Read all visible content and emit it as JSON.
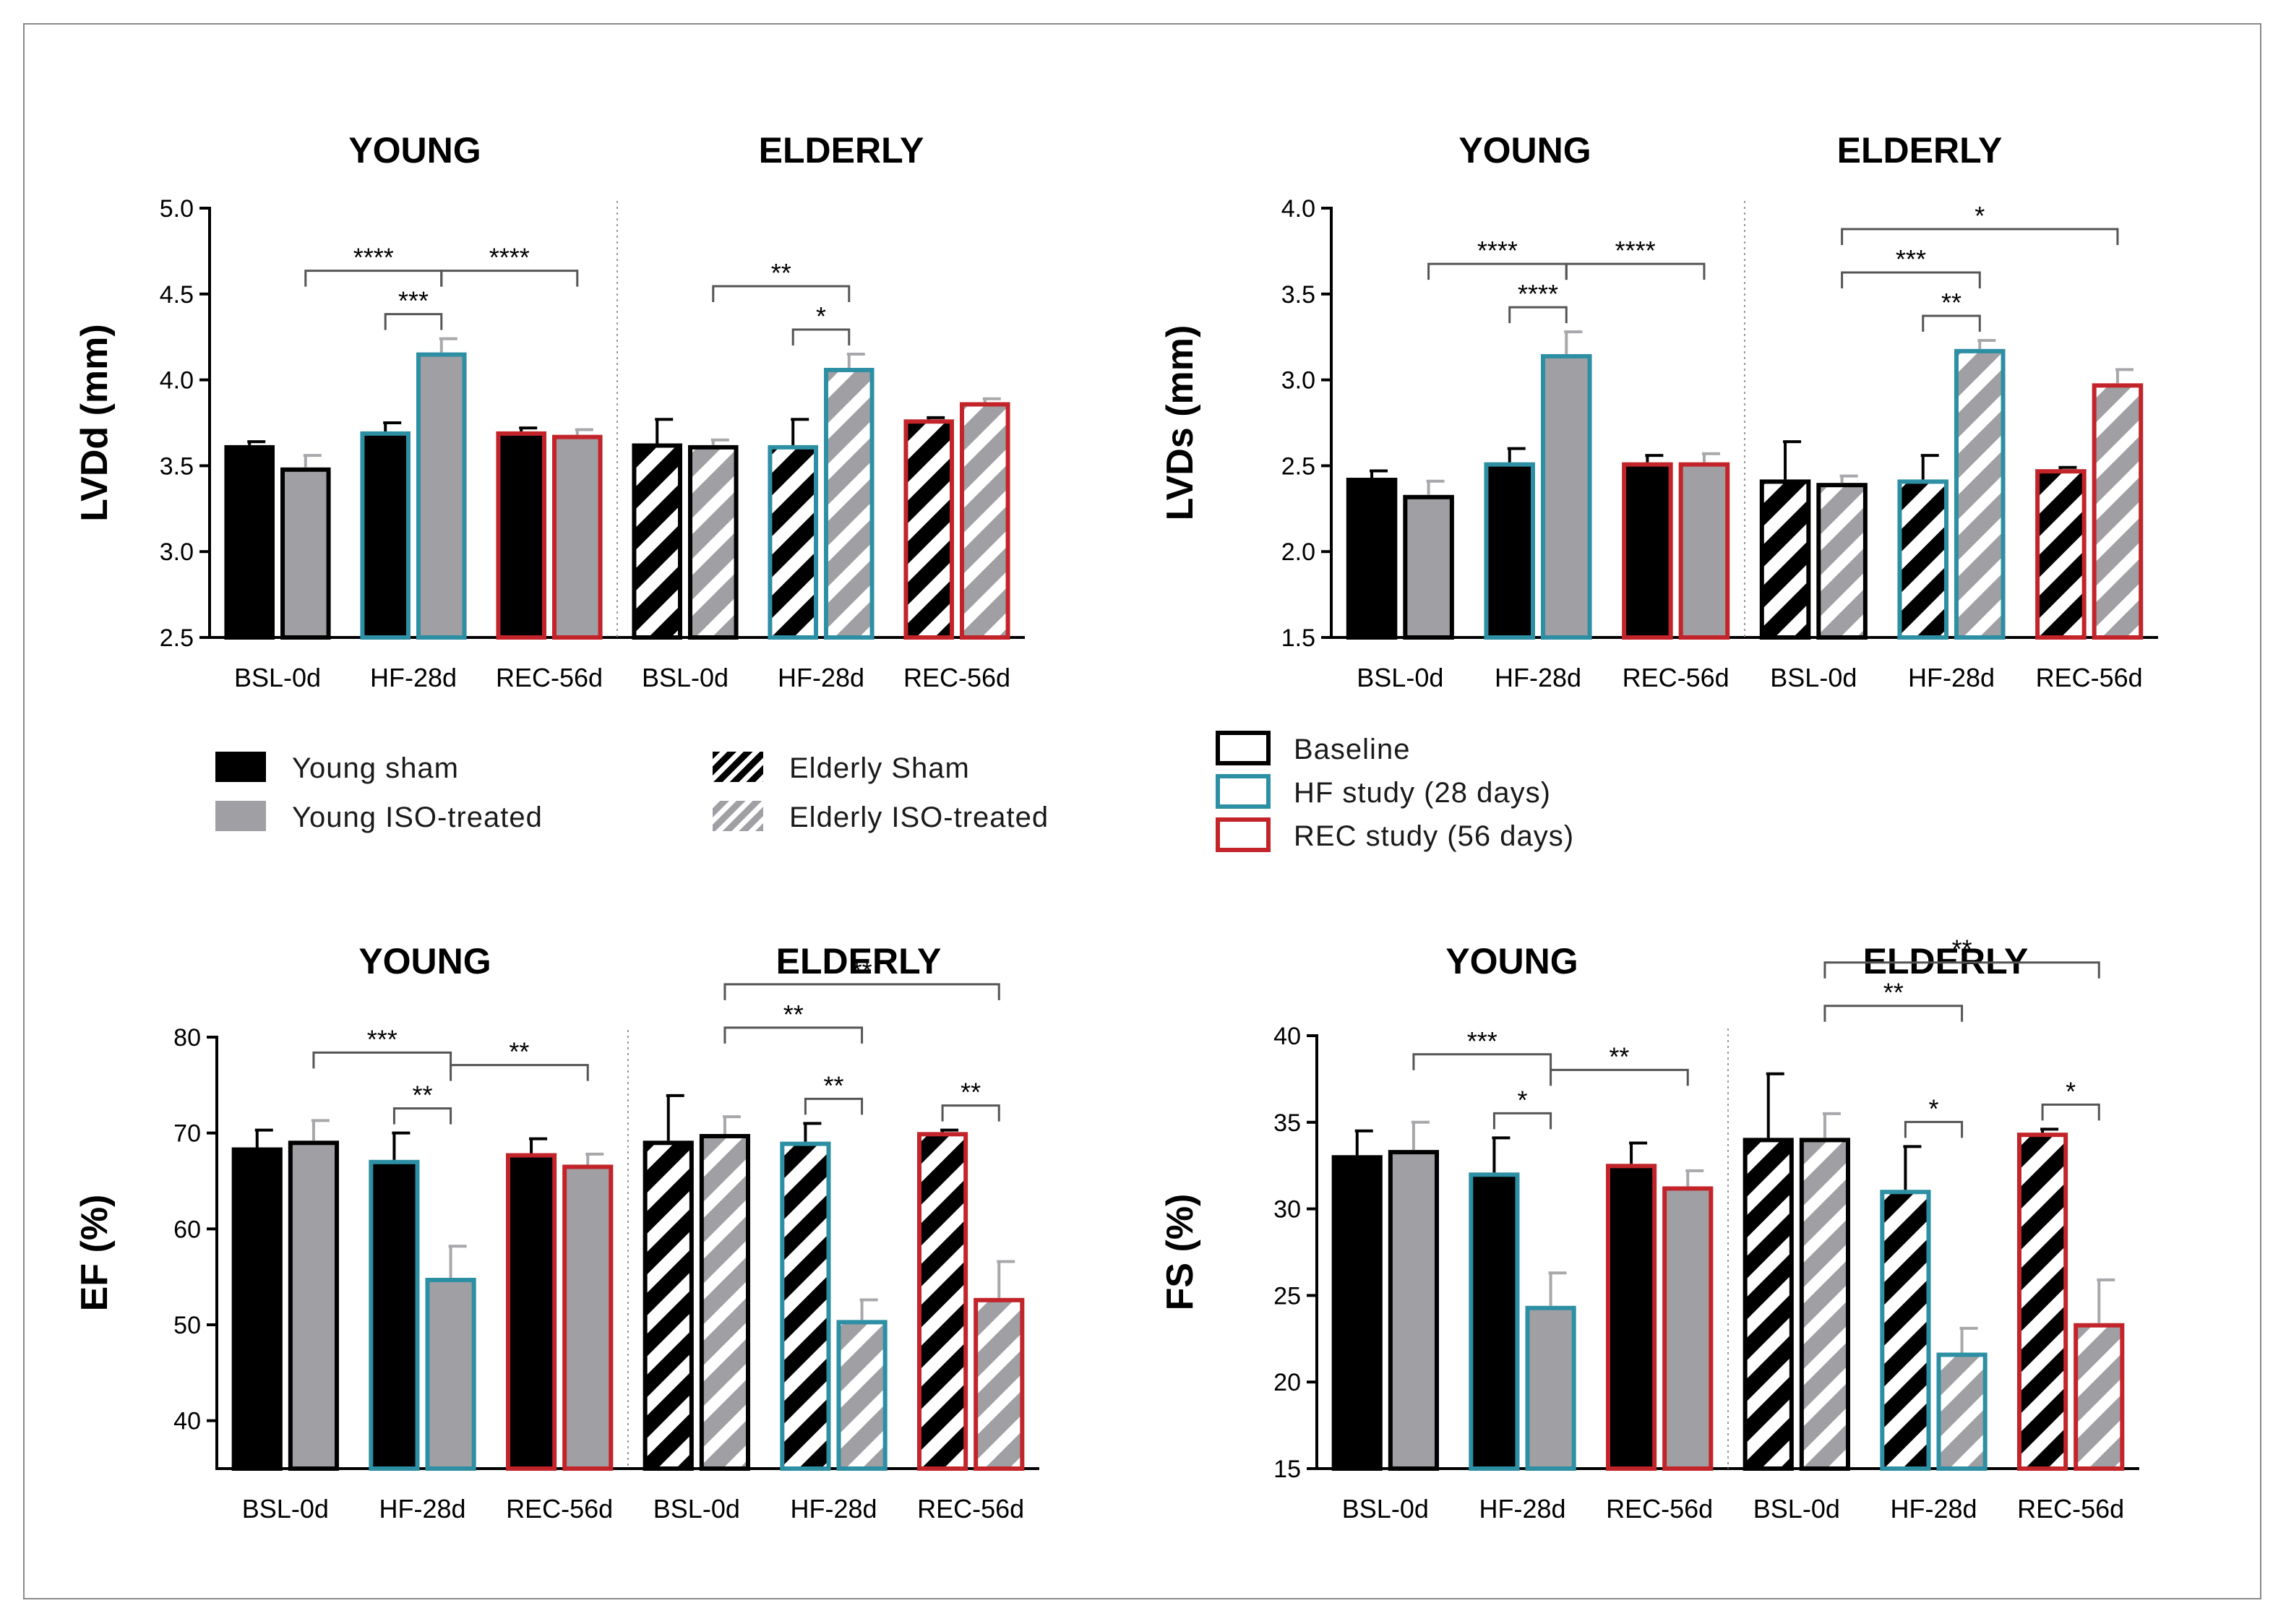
{
  "legend_groups": {
    "items": [
      {
        "label": "Young sham",
        "fill": "black",
        "hatch": false
      },
      {
        "label": "Young ISO-treated",
        "fill": "#a0a0a4",
        "hatch": false
      },
      {
        "label": "Elderly Sham",
        "fill": "black",
        "hatch": true
      },
      {
        "label": "Elderly ISO-treated",
        "fill": "#a0a0a4",
        "hatch": true
      }
    ]
  },
  "legend_studies": {
    "items": [
      {
        "label": "Baseline",
        "color": "#000000"
      },
      {
        "label": "HF study (28 days)",
        "color": "#2d8fa3"
      },
      {
        "label": "REC study (56 days)",
        "color": "#c2242a"
      }
    ]
  },
  "colors": {
    "sham": "#000000",
    "iso": "#a0a0a4",
    "baseline": "#000000",
    "hf": "#2d8fa3",
    "rec": "#c2242a"
  },
  "chart_data": [
    {
      "type": "bar",
      "panel": "top-left",
      "ylabel": "LVDd (mm)",
      "ylim": [
        2.5,
        5.0
      ],
      "yticks": [
        "2.5",
        "3.0",
        "3.5",
        "4.0",
        "4.5",
        "5.0"
      ],
      "group_labels": [
        "YOUNG",
        "ELDERLY"
      ],
      "categories": [
        "BSL-0d",
        "HF-28d",
        "REC-56d",
        "BSL-0d",
        "HF-28d",
        "REC-56d"
      ],
      "series": [
        {
          "name": "Sham",
          "values": [
            3.62,
            3.7,
            3.7,
            3.63,
            3.62,
            3.77
          ],
          "errors": [
            0.02,
            0.05,
            0.02,
            0.14,
            0.15,
            0.01
          ]
        },
        {
          "name": "ISO-treated",
          "values": [
            3.49,
            4.16,
            3.68,
            3.62,
            4.07,
            3.87
          ],
          "errors": [
            0.07,
            0.08,
            0.03,
            0.03,
            0.08,
            0.02
          ]
        }
      ],
      "significance": [
        {
          "label": "****",
          "from": [
            0,
            1
          ],
          "to": [
            1,
            1
          ]
        },
        {
          "label": "****",
          "from": [
            1,
            1
          ],
          "to": [
            2,
            1
          ]
        },
        {
          "label": "***",
          "from": [
            1,
            0
          ],
          "to": [
            1,
            1
          ]
        },
        {
          "label": "**",
          "from": [
            3,
            1
          ],
          "to": [
            4,
            1
          ]
        },
        {
          "label": "*",
          "from": [
            4,
            0
          ],
          "to": [
            4,
            1
          ]
        }
      ]
    },
    {
      "type": "bar",
      "panel": "top-right",
      "ylabel": "LVDs (mm)",
      "ylim": [
        1.5,
        4.0
      ],
      "yticks": [
        "1.5",
        "2.0",
        "2.5",
        "3.0",
        "3.5",
        "4.0"
      ],
      "group_labels": [
        "YOUNG",
        "ELDERLY"
      ],
      "categories": [
        "BSL-0d",
        "HF-28d",
        "REC-56d",
        "BSL-0d",
        "HF-28d",
        "REC-56d"
      ],
      "series": [
        {
          "name": "Sham",
          "values": [
            2.43,
            2.52,
            2.52,
            2.42,
            2.42,
            2.48
          ],
          "errors": [
            0.04,
            0.08,
            0.04,
            0.22,
            0.14,
            0.01
          ]
        },
        {
          "name": "ISO-treated",
          "values": [
            2.33,
            3.15,
            2.52,
            2.4,
            3.18,
            2.98
          ],
          "errors": [
            0.08,
            0.13,
            0.05,
            0.04,
            0.05,
            0.08
          ]
        }
      ],
      "significance": [
        {
          "label": "****",
          "from": [
            0,
            1
          ],
          "to": [
            1,
            1
          ]
        },
        {
          "label": "****",
          "from": [
            1,
            1
          ],
          "to": [
            2,
            1
          ]
        },
        {
          "label": "****",
          "from": [
            1,
            0
          ],
          "to": [
            1,
            1
          ]
        },
        {
          "label": "***",
          "from": [
            3,
            1
          ],
          "to": [
            4,
            1
          ]
        },
        {
          "label": "*",
          "from": [
            3,
            1
          ],
          "to": [
            5,
            1
          ]
        },
        {
          "label": "**",
          "from": [
            4,
            0
          ],
          "to": [
            4,
            1
          ]
        }
      ]
    },
    {
      "type": "bar",
      "panel": "bottom-left",
      "ylabel": "EF (%)",
      "ylim": [
        35,
        80
      ],
      "yticks": [
        "40",
        "50",
        "60",
        "70",
        "80"
      ],
      "group_labels": [
        "YOUNG",
        "ELDERLY"
      ],
      "categories": [
        "BSL-0d",
        "HF-28d",
        "REC-56d",
        "BSL-0d",
        "HF-28d",
        "REC-56d"
      ],
      "series": [
        {
          "name": "Sham",
          "values": [
            68.5,
            67.2,
            67.9,
            69.2,
            69.1,
            70.1
          ],
          "errors": [
            1.8,
            2.8,
            1.5,
            4.7,
            1.9,
            0.2
          ]
        },
        {
          "name": "ISO-treated",
          "values": [
            69.2,
            54.9,
            66.7,
            69.9,
            50.5,
            52.8
          ],
          "errors": [
            2.1,
            3.3,
            1.1,
            1.8,
            2.1,
            3.8
          ]
        }
      ],
      "significance": [
        {
          "label": "***",
          "from": [
            0,
            1
          ],
          "to": [
            1,
            1
          ]
        },
        {
          "label": "**",
          "from": [
            1,
            1
          ],
          "to": [
            2,
            1
          ]
        },
        {
          "label": "**",
          "from": [
            1,
            0
          ],
          "to": [
            1,
            1
          ]
        },
        {
          "label": "**",
          "from": [
            3,
            1
          ],
          "to": [
            4,
            1
          ]
        },
        {
          "label": "**",
          "from": [
            3,
            1
          ],
          "to": [
            5,
            1
          ]
        },
        {
          "label": "**",
          "from": [
            4,
            0
          ],
          "to": [
            4,
            1
          ]
        },
        {
          "label": "**",
          "from": [
            5,
            0
          ],
          "to": [
            5,
            1
          ]
        }
      ]
    },
    {
      "type": "bar",
      "panel": "bottom-right",
      "ylabel": "FS (%)",
      "ylim": [
        15,
        40
      ],
      "yticks": [
        "15",
        "20",
        "25",
        "30",
        "35",
        "40"
      ],
      "group_labels": [
        "YOUNG",
        "ELDERLY"
      ],
      "categories": [
        "BSL-0d",
        "HF-28d",
        "REC-56d",
        "BSL-0d",
        "HF-28d",
        "REC-56d"
      ],
      "series": [
        {
          "name": "Sham",
          "values": [
            33.1,
            32.1,
            32.6,
            34.1,
            31.1,
            34.4
          ],
          "errors": [
            1.4,
            2.0,
            1.2,
            3.7,
            2.5,
            0.2
          ]
        },
        {
          "name": "ISO-treated",
          "values": [
            33.4,
            24.4,
            31.3,
            34.1,
            21.7,
            23.4
          ],
          "errors": [
            1.6,
            1.9,
            0.9,
            1.4,
            1.4,
            2.5
          ]
        }
      ],
      "significance": [
        {
          "label": "***",
          "from": [
            0,
            1
          ],
          "to": [
            1,
            1
          ]
        },
        {
          "label": "**",
          "from": [
            1,
            1
          ],
          "to": [
            2,
            1
          ]
        },
        {
          "label": "*",
          "from": [
            1,
            0
          ],
          "to": [
            1,
            1
          ]
        },
        {
          "label": "**",
          "from": [
            3,
            1
          ],
          "to": [
            4,
            1
          ]
        },
        {
          "label": "**",
          "from": [
            3,
            1
          ],
          "to": [
            5,
            1
          ]
        },
        {
          "label": "*",
          "from": [
            4,
            0
          ],
          "to": [
            4,
            1
          ]
        },
        {
          "label": "*",
          "from": [
            5,
            0
          ],
          "to": [
            5,
            1
          ]
        }
      ]
    }
  ]
}
